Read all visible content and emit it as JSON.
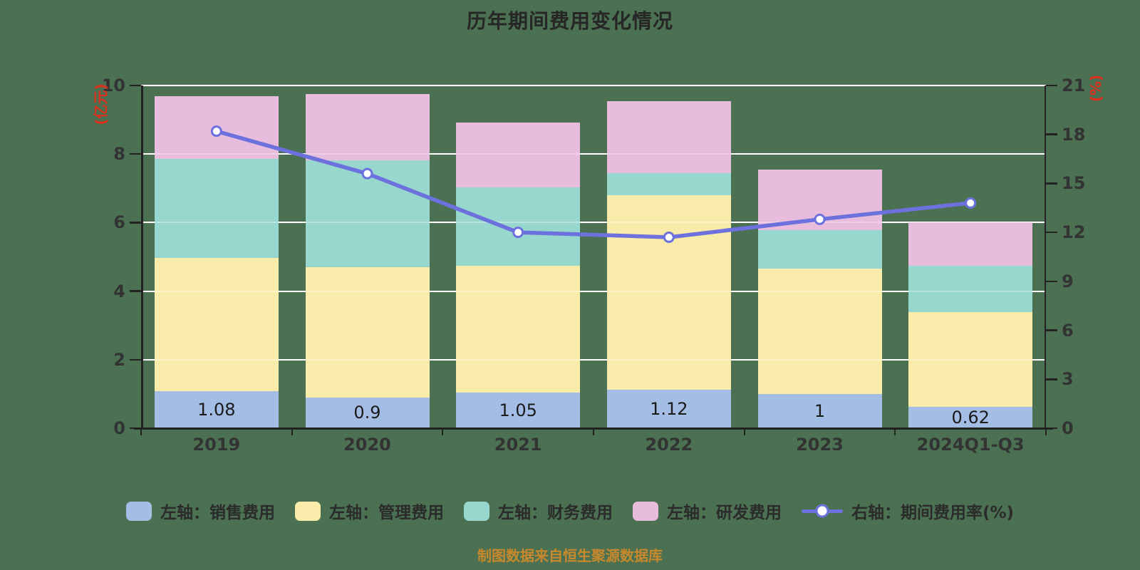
{
  "title": "历年期间费用变化情况",
  "footer": "制图数据来自恒生聚源数据库",
  "colors": {
    "background": "#4b7152",
    "grid": "#ffffff",
    "axis": "#222222",
    "tick_label": "#333333",
    "unit_label": "#e0301e",
    "title": "#262626",
    "footer": "#c8882c"
  },
  "chart_data": {
    "type": "bar",
    "subtype": "stacked-bar-with-line",
    "title": "历年期间费用变化情况",
    "categories": [
      "2019",
      "2020",
      "2021",
      "2022",
      "2023",
      "2024Q1-Q3"
    ],
    "series": [
      {
        "name": "左轴：销售费用",
        "type": "bar",
        "axis": "left",
        "color": "#a3bde4",
        "values": [
          1.08,
          0.9,
          1.05,
          1.12,
          1,
          0.62
        ],
        "labels": [
          "1.08",
          "0.9",
          "1.05",
          "1.12",
          "1",
          "0.62"
        ]
      },
      {
        "name": "左轴：管理费用",
        "type": "bar",
        "axis": "left",
        "color": "#f9ecaa",
        "values": [
          3.89,
          3.8,
          3.69,
          5.68,
          3.66,
          2.77
        ]
      },
      {
        "name": "左轴：财务费用",
        "type": "bar",
        "axis": "left",
        "color": "#97d7ce",
        "values": [
          2.89,
          3.12,
          2.29,
          0.64,
          1.12,
          1.35
        ]
      },
      {
        "name": "左轴：研发费用",
        "type": "bar",
        "axis": "left",
        "color": "#e7bcdc",
        "values": [
          1.83,
          1.93,
          1.89,
          2.1,
          1.77,
          1.27
        ]
      },
      {
        "name": "右轴：期间费用率(%)",
        "type": "line",
        "axis": "right",
        "color": "#6c71dd",
        "values": [
          18.2,
          15.6,
          12.0,
          11.7,
          12.8,
          13.8
        ]
      }
    ],
    "bar_totals": [
      9.69,
      9.75,
      8.92,
      9.54,
      7.55,
      6.01
    ],
    "left_axis": {
      "unit": "(亿元)",
      "min": 0,
      "max": 10,
      "ticks": [
        0,
        2,
        4,
        6,
        8,
        10
      ]
    },
    "right_axis": {
      "unit": "(%)",
      "min": 0,
      "max": 21,
      "ticks": [
        0,
        3,
        6,
        9,
        12,
        15,
        18,
        21
      ]
    },
    "grid": true,
    "legend_position": "bottom"
  }
}
